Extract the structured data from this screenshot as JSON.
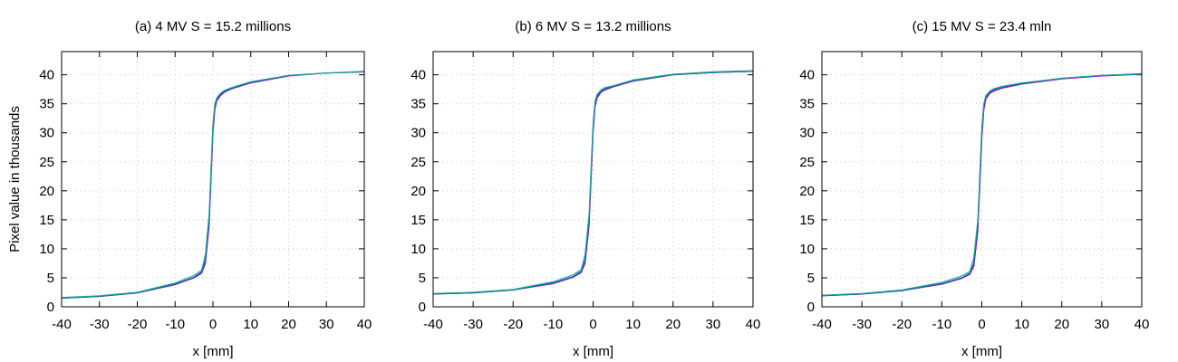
{
  "figure": {
    "ylabel": "Pixel value in thousands"
  },
  "chart_data": [
    {
      "type": "line",
      "title": "(a) 4 MV S = 15.2 millions",
      "xlabel": "x [mm]",
      "ylabel": "Pixel value in thousands",
      "xlim": [
        -40,
        40
      ],
      "ylim": [
        0,
        44
      ],
      "xticks": [
        "-40",
        "-30",
        "-20",
        "-10",
        "0",
        "10",
        "20",
        "30",
        "40"
      ],
      "yticks": [
        "0",
        "5",
        "10",
        "15",
        "20",
        "25",
        "30",
        "35",
        "40"
      ],
      "grid": true,
      "x": [
        -40,
        -30,
        -20,
        -10,
        -5,
        -3,
        -2,
        -1,
        -0.5,
        0,
        0.5,
        1,
        2,
        3,
        5,
        10,
        20,
        30,
        40
      ],
      "series": [
        {
          "color": "#9400d3",
          "values": [
            1.5,
            1.8,
            2.4,
            3.8,
            5.0,
            5.8,
            7.5,
            14.0,
            22.0,
            30.0,
            34.0,
            35.5,
            36.4,
            37.0,
            37.6,
            38.6,
            39.8,
            40.3,
            40.5
          ]
        },
        {
          "color": "#1a55b5",
          "values": [
            1.5,
            1.8,
            2.4,
            3.9,
            5.1,
            6.0,
            8.0,
            15.0,
            23.0,
            31.0,
            34.5,
            35.8,
            36.6,
            37.1,
            37.7,
            38.7,
            39.9,
            40.3,
            40.5
          ]
        },
        {
          "color": "#1aa88f",
          "values": [
            1.6,
            1.9,
            2.5,
            4.1,
            5.4,
            6.3,
            9.0,
            16.0,
            24.0,
            31.5,
            35.0,
            36.0,
            36.8,
            37.3,
            37.8,
            38.8,
            39.9,
            40.3,
            40.6
          ]
        }
      ]
    },
    {
      "type": "line",
      "title": "(b) 6 MV S = 13.2 millions",
      "xlabel": "x [mm]",
      "ylabel": "",
      "xlim": [
        -40,
        40
      ],
      "ylim": [
        0,
        44
      ],
      "xticks": [
        "-40",
        "-30",
        "-20",
        "-10",
        "0",
        "10",
        "20",
        "30",
        "40"
      ],
      "yticks": [
        "0",
        "5",
        "10",
        "15",
        "20",
        "25",
        "30",
        "35",
        "40"
      ],
      "grid": true,
      "x": [
        -40,
        -30,
        -20,
        -10,
        -5,
        -3,
        -2,
        -1,
        -0.5,
        0,
        0.5,
        1,
        2,
        3,
        5,
        10,
        20,
        30,
        40
      ],
      "series": [
        {
          "color": "#9400d3",
          "values": [
            2.2,
            2.4,
            2.9,
            4.0,
            5.1,
            5.9,
            7.5,
            14.0,
            22.0,
            30.0,
            34.5,
            36.0,
            37.0,
            37.4,
            37.9,
            38.9,
            40.0,
            40.4,
            40.6
          ]
        },
        {
          "color": "#1a55b5",
          "values": [
            2.2,
            2.4,
            2.9,
            4.1,
            5.2,
            6.1,
            8.0,
            15.0,
            23.0,
            31.0,
            35.0,
            36.3,
            37.2,
            37.6,
            38.0,
            39.0,
            40.0,
            40.4,
            40.6
          ]
        },
        {
          "color": "#1aa88f",
          "values": [
            2.3,
            2.5,
            3.0,
            4.3,
            5.5,
            6.4,
            9.0,
            16.0,
            24.0,
            31.5,
            35.5,
            36.6,
            37.4,
            37.8,
            38.1,
            39.1,
            40.1,
            40.5,
            40.7
          ]
        }
      ]
    },
    {
      "type": "line",
      "title": "(c) 15 MV S = 23.4 mln",
      "xlabel": "x [mm]",
      "ylabel": "",
      "xlim": [
        -40,
        40
      ],
      "ylim": [
        0,
        44
      ],
      "xticks": [
        "-40",
        "-30",
        "-20",
        "-10",
        "0",
        "10",
        "20",
        "30",
        "40"
      ],
      "yticks": [
        "0",
        "5",
        "10",
        "15",
        "20",
        "25",
        "30",
        "35",
        "40"
      ],
      "grid": true,
      "x": [
        -40,
        -30,
        -20,
        -10,
        -5,
        -3,
        -2,
        -1,
        -0.5,
        0,
        0.5,
        1,
        2,
        3,
        5,
        10,
        20,
        30,
        40
      ],
      "series": [
        {
          "color": "#9400d3",
          "values": [
            1.9,
            2.2,
            2.8,
            3.9,
            4.9,
            5.6,
            7.0,
            13.0,
            21.0,
            29.0,
            34.0,
            35.8,
            36.8,
            37.2,
            37.7,
            38.4,
            39.3,
            39.8,
            40.1
          ]
        },
        {
          "color": "#1a55b5",
          "values": [
            1.9,
            2.2,
            2.8,
            4.0,
            5.0,
            5.8,
            7.5,
            14.0,
            22.0,
            30.0,
            34.5,
            36.1,
            37.0,
            37.4,
            37.9,
            38.5,
            39.4,
            39.9,
            40.1
          ]
        },
        {
          "color": "#1aa88f",
          "values": [
            2.0,
            2.3,
            2.9,
            4.2,
            5.3,
            6.1,
            8.5,
            15.0,
            23.0,
            31.0,
            35.0,
            36.4,
            37.2,
            37.6,
            38.0,
            38.6,
            39.4,
            39.9,
            40.2
          ]
        }
      ]
    }
  ]
}
